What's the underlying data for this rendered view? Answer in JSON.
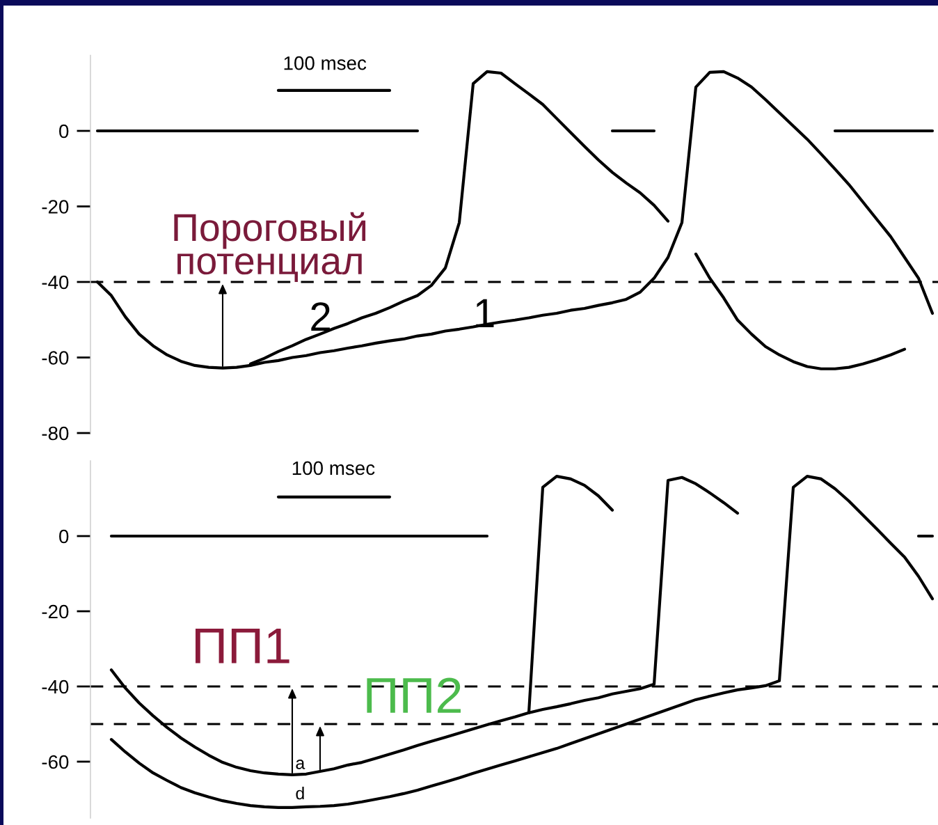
{
  "chart_data": [
    {
      "type": "line",
      "categories": [
        null,
        null,
        null,
        null,
        null,
        null,
        null,
        null,
        null,
        null,
        null,
        null,
        null,
        null,
        null,
        null,
        null,
        null,
        null,
        null,
        null,
        null,
        null,
        null,
        null,
        null,
        null,
        null,
        null,
        null,
        null,
        null,
        null,
        null,
        null,
        null,
        null,
        null,
        null,
        null,
        null,
        null,
        null,
        null,
        null,
        null,
        null,
        null,
        null,
        null,
        null,
        null,
        null,
        null,
        null,
        null,
        null,
        null,
        null,
        null,
        null
      ],
      "ylim": [
        -80,
        20
      ],
      "yticks": [
        0,
        -20,
        -40,
        -60,
        -80
      ],
      "tick_labels": "y",
      "line_style": "solid",
      "series": [
        {
          "color": "#000000",
          "values": [
            -40,
            -43.6,
            -49.2,
            -53.8,
            -56.9,
            -59.3,
            -61,
            -62.1,
            -62.6,
            -62.8,
            -62.6,
            -62.1,
            -61.3,
            -60.8,
            -60,
            -59.5,
            -58.7,
            -58.2,
            -57.5,
            -56.9,
            -56.2,
            -55.6,
            -55.1,
            -54.3,
            -53.8,
            -53,
            -52.5,
            -51.9,
            -51.2,
            -50.6,
            -50.1,
            -49.5,
            -48.8,
            -48.3,
            -47.5,
            -47,
            -46.2,
            -45.5,
            -44.6,
            -42.7,
            -39,
            -33.5,
            -24.3,
            11.6,
            15.5,
            15.7,
            14,
            11.6,
            8.3,
            4.8,
            1.3,
            -2.2,
            -6.1,
            -10.1,
            -14.2,
            -18.8,
            -23.4,
            -28,
            -33.5,
            -39,
            -48.3
          ]
        },
        {
          "color": "#000000",
          "values": [
            null,
            null,
            null,
            null,
            null,
            null,
            null,
            null,
            null,
            null,
            null,
            -61.7,
            -60.2,
            -58.4,
            -56.9,
            -55.2,
            -53.8,
            -52.3,
            -51,
            -49.5,
            -48.3,
            -46.8,
            -45.1,
            -43.6,
            -40.9,
            -36.3,
            -24.3,
            12.5,
            15.7,
            15.3,
            12.5,
            9.8,
            7,
            3.3,
            -0.4,
            -4.1,
            -7.7,
            -11,
            -13.8,
            -16.4,
            -19.7,
            -23.9,
            null,
            -32.6,
            -39,
            -44.2,
            -50.1,
            -53.8,
            -57.1,
            -59.3,
            -61.1,
            -62.4,
            -63,
            -63,
            -62.6,
            -61.7,
            -60.6,
            -59.3,
            -57.8,
            null,
            null
          ]
        },
        {
          "color": "#000000",
          "values": [
            0,
            0,
            0,
            0,
            0,
            0,
            0,
            0,
            0,
            0,
            0,
            0,
            0,
            0,
            0,
            0,
            0,
            0,
            0,
            0,
            0,
            0,
            0,
            0,
            null,
            null,
            null,
            null,
            null,
            null,
            null,
            null,
            null,
            null,
            null,
            null,
            null,
            0,
            0,
            0,
            0,
            null,
            null,
            null,
            null,
            null,
            null,
            null,
            null,
            null,
            null,
            null,
            null,
            0,
            0,
            0,
            0,
            0,
            0,
            0,
            0
          ]
        },
        {
          "color": "#000000",
          "values": [
            null,
            null,
            null,
            null,
            null,
            null,
            null,
            null,
            null,
            null,
            null,
            null,
            null,
            10.7,
            10.7,
            10.7,
            10.7,
            10.7,
            10.7,
            10.7,
            10.7,
            10.7,
            null,
            null,
            null,
            null,
            null,
            null,
            null,
            null,
            null,
            null,
            null,
            null,
            null,
            null,
            null,
            null,
            null,
            null,
            null,
            null,
            null,
            null,
            null,
            null,
            null,
            null,
            null,
            null,
            null,
            null,
            null,
            null,
            null,
            null,
            null,
            null,
            null,
            null,
            null
          ]
        }
      ],
      "ref_lines": [
        {
          "axis": "y",
          "value": -40,
          "line_style": "dashed",
          "color": "#000000"
        }
      ],
      "annotations": [
        "100 msec",
        "Пороговый\nпотенциал",
        "2",
        "1"
      ]
    },
    {
      "type": "line",
      "categories": [
        null,
        null,
        null,
        null,
        null,
        null,
        null,
        null,
        null,
        null,
        null,
        null,
        null,
        null,
        null,
        null,
        null,
        null,
        null,
        null,
        null,
        null,
        null,
        null,
        null,
        null,
        null,
        null,
        null,
        null,
        null,
        null,
        null,
        null,
        null,
        null,
        null,
        null,
        null,
        null,
        null,
        null,
        null,
        null,
        null,
        null,
        null,
        null,
        null,
        null,
        null,
        null,
        null,
        null,
        null,
        null,
        null,
        null,
        null,
        null,
        null
      ],
      "ylim": [
        -75,
        20
      ],
      "yticks": [
        0,
        -20,
        -40,
        -60
      ],
      "tick_labels": "y",
      "line_style": "solid",
      "series": [
        {
          "color": "#000000",
          "values": [
            null,
            -35.6,
            -40.4,
            -44.4,
            -47.8,
            -50.9,
            -53.7,
            -56.1,
            -58.3,
            -60.2,
            -61.5,
            -62.4,
            -63,
            -63.3,
            -63.5,
            -63.3,
            -62.6,
            -61.9,
            -60.9,
            -60.2,
            -59.1,
            -58,
            -56.9,
            -55.7,
            -54.6,
            -53.5,
            -52.4,
            -51.3,
            -50.2,
            -49.1,
            -48.1,
            -47,
            -46.1,
            -45.4,
            -44.6,
            -43.7,
            -43,
            -42,
            -41.3,
            -40.6,
            -39.4,
            14.8,
            15.6,
            13.9,
            11.5,
            8.9,
            6.1,
            null,
            null,
            null,
            null,
            null,
            null,
            null,
            null,
            null,
            null,
            null,
            null,
            null,
            null
          ]
        },
        {
          "color": "#000000",
          "values": [
            null,
            null,
            null,
            null,
            null,
            null,
            null,
            null,
            null,
            null,
            null,
            null,
            null,
            null,
            null,
            null,
            null,
            null,
            null,
            null,
            null,
            null,
            null,
            null,
            null,
            null,
            null,
            null,
            null,
            null,
            null,
            -47,
            13,
            15.9,
            15.2,
            13.5,
            10.7,
            6.9,
            null,
            null,
            null,
            null,
            null,
            null,
            null,
            null,
            null,
            null,
            null,
            null,
            null,
            null,
            null,
            null,
            null,
            null,
            null,
            null,
            null,
            null,
            null
          ]
        },
        {
          "color": "#000000",
          "values": [
            null,
            -54.1,
            -57.4,
            -60.4,
            -63,
            -65,
            -66.9,
            -68.3,
            -69.4,
            -70.4,
            -71.1,
            -71.7,
            -72,
            -72.2,
            -72.2,
            -72,
            -71.9,
            -71.7,
            -71.3,
            -70.7,
            -70,
            -69.3,
            -68.5,
            -67.6,
            -66.5,
            -65.4,
            -64.3,
            -63.1,
            -62,
            -60.9,
            -59.8,
            -58.7,
            -57.6,
            -56.5,
            -55.2,
            -53.9,
            -52.6,
            -51.3,
            -50,
            -48.7,
            -47.4,
            -46.1,
            -44.8,
            -43.5,
            -42.6,
            -41.7,
            -40.9,
            -40.4,
            -39.8,
            -38.5,
            13,
            15.9,
            15.2,
            12.6,
            9.3,
            5.6,
            1.9,
            -1.9,
            -5.6,
            -10.7,
            -16.7
          ]
        },
        {
          "color": "#000000",
          "values": [
            null,
            0,
            0,
            0,
            0,
            0,
            0,
            0,
            0,
            0,
            0,
            0,
            0,
            0,
            0,
            0,
            0,
            0,
            0,
            0,
            0,
            0,
            0,
            0,
            0,
            0,
            0,
            0,
            0,
            null,
            null,
            null,
            null,
            null,
            null,
            null,
            null,
            null,
            null,
            null,
            null,
            null,
            null,
            null,
            null,
            null,
            null,
            null,
            null,
            null,
            null,
            null,
            null,
            null,
            null,
            null,
            null,
            null,
            null,
            0,
            0
          ]
        },
        {
          "color": "#000000",
          "values": [
            null,
            null,
            null,
            null,
            null,
            null,
            null,
            null,
            null,
            null,
            null,
            null,
            null,
            10.4,
            10.4,
            10.4,
            10.4,
            10.4,
            10.4,
            10.4,
            10.4,
            10.4,
            null,
            null,
            null,
            null,
            null,
            null,
            null,
            null,
            null,
            null,
            null,
            null,
            null,
            null,
            null,
            null,
            null,
            null,
            null,
            null,
            null,
            null,
            null,
            null,
            null,
            null,
            null,
            null,
            null,
            null,
            null,
            null,
            null,
            null,
            null,
            null,
            null,
            null,
            null
          ]
        }
      ],
      "ref_lines": [
        {
          "axis": "y",
          "value": -40,
          "line_style": "dashed",
          "color": "#000000"
        },
        {
          "axis": "y",
          "value": -50,
          "line_style": "dashed",
          "color": "#000000"
        }
      ],
      "annotations": [
        "100 msec",
        "ПП1",
        "ПП2",
        "a",
        "d"
      ]
    }
  ]
}
